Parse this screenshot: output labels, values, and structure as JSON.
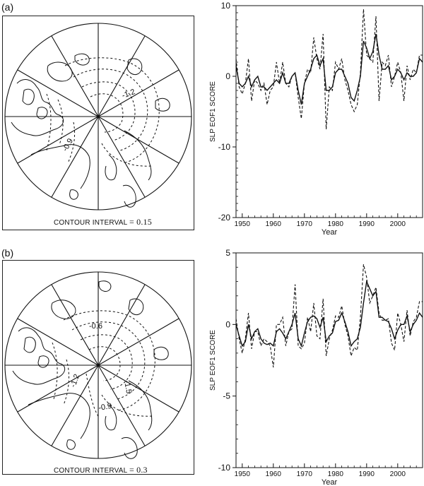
{
  "panels": [
    {
      "label": "(a)",
      "contour_text": "CONTOUR INTERVAL",
      "contour_value": "= 0.15",
      "map_labels": [
        "-1.2",
        "-0.9"
      ]
    },
    {
      "label": "(b)",
      "contour_text": "CONTOUR INTERVAL",
      "contour_value": "= 0.3",
      "map_labels": [
        "-0.6",
        "-1.5",
        "-1.2",
        "-0.9"
      ]
    }
  ],
  "chart_data": [
    {
      "type": "line",
      "ylabel": "SLP EOF1 SCORE",
      "xlabel": "Year",
      "xlim": [
        1948,
        2008
      ],
      "ylim": [
        -20,
        10
      ],
      "x_ticks": [
        1950,
        1960,
        1970,
        1980,
        1990,
        2000
      ],
      "y_ticks": [
        -20,
        -10,
        0,
        10
      ],
      "x": [
        1948,
        1949,
        1950,
        1951,
        1952,
        1953,
        1954,
        1955,
        1956,
        1957,
        1958,
        1959,
        1960,
        1961,
        1962,
        1963,
        1964,
        1965,
        1966,
        1967,
        1968,
        1969,
        1970,
        1971,
        1972,
        1973,
        1974,
        1975,
        1976,
        1977,
        1978,
        1979,
        1980,
        1981,
        1982,
        1983,
        1984,
        1985,
        1986,
        1987,
        1988,
        1989,
        1990,
        1991,
        1992,
        1993,
        1994,
        1995,
        1996,
        1997,
        1998,
        1999,
        2000,
        2001,
        2002,
        2003,
        2004,
        2005,
        2006,
        2007,
        2008
      ],
      "series": [
        {
          "style": "solid",
          "values": [
            1.5,
            -1,
            -1.5,
            -1,
            0,
            -1.5,
            -0.5,
            0,
            -1.5,
            -1.5,
            -2,
            -1.5,
            -1,
            -0.5,
            -1,
            0.5,
            -1,
            -1,
            0,
            0.5,
            -2,
            -4,
            -1,
            0,
            1,
            2.5,
            3,
            1.5,
            2.5,
            -2,
            -2,
            -1.5,
            0.5,
            1,
            1,
            0,
            -1,
            -3,
            -3.5,
            -2,
            0,
            5,
            4,
            2.5,
            3.5,
            6,
            3,
            1,
            1,
            1.5,
            -0.5,
            0,
            1,
            0.5,
            -0.5,
            0.5,
            0,
            0,
            0.5,
            2.5,
            2
          ]
        },
        {
          "style": "dashed",
          "values": [
            2.5,
            -1.5,
            -2.5,
            -1,
            2.5,
            -3.5,
            -0.5,
            -1,
            -2,
            -1,
            -4,
            -2,
            -1.5,
            2,
            -1,
            2,
            -1,
            -1.5,
            0,
            0.5,
            -3,
            -6,
            -1,
            1,
            0.5,
            5.5,
            2.5,
            1,
            6,
            -7.5,
            -1.5,
            -2,
            2,
            1,
            2.5,
            -0.5,
            -2,
            -4,
            -5,
            -4,
            0.5,
            9.5,
            3,
            2.5,
            2,
            8.5,
            -3.5,
            2,
            1.5,
            3,
            -1.5,
            0,
            2,
            0.5,
            -3.5,
            1.5,
            -0.5,
            1,
            0.5,
            3,
            3
          ]
        }
      ]
    },
    {
      "type": "line",
      "ylabel": "SLP EOF1 SCORE",
      "xlabel": "Year",
      "xlim": [
        1948,
        2008
      ],
      "ylim": [
        -10,
        5
      ],
      "x_ticks": [
        1950,
        1960,
        1970,
        1980,
        1990,
        2000
      ],
      "y_ticks": [
        -10,
        -5,
        0,
        5
      ],
      "x": [
        1948,
        1949,
        1950,
        1951,
        1952,
        1953,
        1954,
        1955,
        1956,
        1957,
        1958,
        1959,
        1960,
        1961,
        1962,
        1963,
        1964,
        1965,
        1966,
        1967,
        1968,
        1969,
        1970,
        1971,
        1972,
        1973,
        1974,
        1975,
        1976,
        1977,
        1978,
        1979,
        1980,
        1981,
        1982,
        1983,
        1984,
        1985,
        1986,
        1987,
        1988,
        1989,
        1990,
        1991,
        1992,
        1993,
        1994,
        1995,
        1996,
        1997,
        1998,
        1999,
        2000,
        2001,
        2002,
        2003,
        2004,
        2005,
        2006,
        2007,
        2008
      ],
      "series": [
        {
          "style": "solid",
          "values": [
            0,
            -0.8,
            -1.5,
            -1.2,
            0,
            -1,
            -0.5,
            -0.3,
            -1,
            -1.3,
            -1.4,
            -1.3,
            -1.5,
            -0.5,
            -0.3,
            -0.6,
            -1,
            -0.5,
            0,
            0.8,
            -1,
            -1.5,
            -0.6,
            0.2,
            0.5,
            0.6,
            0.4,
            -0.2,
            0.5,
            -1.2,
            -0.8,
            -0.6,
            0.2,
            0.3,
            0.8,
            0.2,
            -0.5,
            -1.5,
            -1.2,
            -1,
            -0.2,
            1.5,
            3,
            2.5,
            2,
            2.3,
            0.5,
            0.5,
            0.3,
            0.2,
            -0.3,
            -1,
            -0.4,
            0,
            0,
            0.6,
            -0.5,
            0,
            0.3,
            0.8,
            0.5
          ]
        },
        {
          "style": "dashed",
          "values": [
            0.4,
            -1,
            -2,
            -1,
            0.8,
            -1.7,
            -0.5,
            -0.5,
            -1.5,
            -1,
            -1.2,
            -1.5,
            -3,
            0,
            0,
            0.5,
            -1.5,
            -0.5,
            -0.3,
            2.8,
            -1.5,
            -1.7,
            -1.3,
            0.5,
            -0.5,
            1.5,
            -0.8,
            -1,
            1.8,
            -2.2,
            -1,
            -0.4,
            0.6,
            0.5,
            1.3,
            0,
            -0.8,
            -2.2,
            -1.6,
            -1.8,
            0.5,
            4.2,
            3.3,
            1.5,
            2,
            2.6,
            0.8,
            0.3,
            0.3,
            0.4,
            -1.3,
            -1.8,
            0.8,
            0,
            -1.2,
            1,
            -0.8,
            0.2,
            0.5,
            1.6,
            1.6
          ]
        }
      ]
    }
  ]
}
